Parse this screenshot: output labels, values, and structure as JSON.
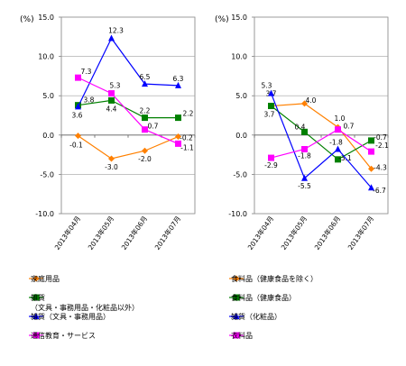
{
  "chart_data": [
    {
      "type": "line",
      "unit_label": "(%)",
      "categories": [
        "2013年04月",
        "2013年05月",
        "2013年06月",
        "2013年07月"
      ],
      "ylim": [
        -10.0,
        15.0
      ],
      "yticks": [
        "15.0",
        "10.0",
        "5.0",
        "0.0",
        "-5.0",
        "-10.0"
      ],
      "grid": true,
      "series": [
        {
          "name": "家庭用品",
          "color": "#FF8000",
          "marker": "diamond",
          "values": [
            -0.1,
            -3.0,
            -2.0,
            -0.2
          ],
          "labels": [
            "-0.1",
            "-3.0",
            "-2.0",
            "-0.2"
          ]
        },
        {
          "name": "雑貨（文具・事務用品・化粧品以外）",
          "name_lines": [
            "雑貨",
            "（文具・事務用品・化粧品以外）"
          ],
          "color": "#008000",
          "marker": "square",
          "values": [
            3.8,
            4.4,
            2.2,
            2.2
          ],
          "labels": [
            "3.8",
            "4.4",
            "2.2",
            "2.2"
          ]
        },
        {
          "name": "雑貨（文具・事務用品）",
          "color": "#0000FF",
          "marker": "triangle",
          "values": [
            3.6,
            12.3,
            6.5,
            6.3
          ],
          "labels": [
            "3.6",
            "12.3",
            "6.5",
            "6.3"
          ]
        },
        {
          "name": "通信教育・サービス",
          "color": "#FF00FF",
          "marker": "square",
          "values": [
            7.3,
            5.3,
            0.7,
            -1.1
          ],
          "labels": [
            "7.3",
            "5.3",
            "0.7",
            "-1.1"
          ]
        }
      ]
    },
    {
      "type": "line",
      "unit_label": "(%)",
      "categories": [
        "2013年04月",
        "2013年05月",
        "2013年06月",
        "2013年07月"
      ],
      "ylim": [
        -10.0,
        15.0
      ],
      "yticks": [
        "15.0",
        "10.0",
        "5.0",
        "0.0",
        "-5.0",
        "-10.0"
      ],
      "grid": true,
      "series": [
        {
          "name": "食料品（健康食品を除く）",
          "color": "#FF8000",
          "marker": "diamond",
          "values": [
            3.7,
            4.0,
            1.0,
            -4.3
          ],
          "labels": [
            "3.7",
            "4.0",
            "1.0",
            "-4.3"
          ]
        },
        {
          "name": "食料品（健康食品）",
          "color": "#008000",
          "marker": "square",
          "values": [
            3.7,
            0.4,
            -3.1,
            -0.7
          ],
          "labels": [
            "3.7",
            "0.4",
            "-3.1",
            "-0.7"
          ]
        },
        {
          "name": "雑貨（化粧品）",
          "color": "#0000FF",
          "marker": "triangle",
          "values": [
            5.3,
            -5.5,
            -1.8,
            -6.7
          ],
          "labels": [
            "5.3",
            "-5.5",
            "-1.8",
            "-6.7"
          ]
        },
        {
          "name": "衣料品",
          "color": "#FF00FF",
          "marker": "square",
          "values": [
            -2.9,
            -1.8,
            0.7,
            -2.1
          ],
          "labels": [
            "-2.9",
            "-1.8",
            "0.7",
            "-2.1"
          ]
        }
      ]
    }
  ]
}
